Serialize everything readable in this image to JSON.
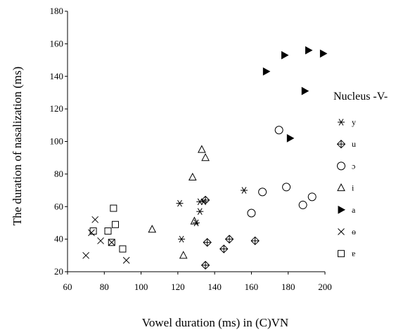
{
  "chart_data": {
    "type": "scatter",
    "title": "",
    "xlabel": "Vowel duration (ms) in (C)VN",
    "ylabel": "The duration of nasalization (ms)",
    "xlim": [
      60,
      200
    ],
    "ylim": [
      20,
      180
    ],
    "x_ticks": [
      "60",
      "80",
      "100",
      "120",
      "140",
      "160",
      "180",
      "200"
    ],
    "y_ticks": [
      "20",
      "40",
      "60",
      "80",
      "100",
      "120",
      "140",
      "160",
      "180"
    ],
    "grid": false,
    "legend": {
      "title": "Nucleus -V-",
      "placement": "right"
    },
    "series": [
      {
        "name": "y",
        "marker": "asterisk",
        "points": [
          [
            121,
            62
          ],
          [
            122,
            40
          ],
          [
            130,
            50
          ],
          [
            132,
            63
          ],
          [
            132,
            57
          ],
          [
            134,
            63
          ],
          [
            156,
            70
          ]
        ]
      },
      {
        "name": "u",
        "marker": "diamond-cross",
        "points": [
          [
            135,
            64
          ],
          [
            135,
            24
          ],
          [
            136,
            38
          ],
          [
            145,
            34
          ],
          [
            148,
            40
          ],
          [
            162,
            39
          ]
        ]
      },
      {
        "name": "ɔ",
        "marker": "circle",
        "points": [
          [
            160,
            56
          ],
          [
            166,
            69
          ],
          [
            175,
            107
          ],
          [
            179,
            72
          ],
          [
            188,
            61
          ],
          [
            193,
            66
          ]
        ]
      },
      {
        "name": "i",
        "marker": "triangle",
        "points": [
          [
            106,
            46
          ],
          [
            123,
            30
          ],
          [
            128,
            78
          ],
          [
            129,
            51
          ],
          [
            133,
            95
          ],
          [
            135,
            90
          ]
        ]
      },
      {
        "name": "a",
        "marker": "triangle-right",
        "points": [
          [
            168,
            143
          ],
          [
            178,
            153
          ],
          [
            181,
            102
          ],
          [
            189,
            131
          ],
          [
            191,
            156
          ],
          [
            199,
            154
          ]
        ]
      },
      {
        "name": "ɵ",
        "marker": "x",
        "points": [
          [
            70,
            30
          ],
          [
            73,
            44
          ],
          [
            75,
            52
          ],
          [
            78,
            39
          ],
          [
            84,
            38
          ],
          [
            92,
            27
          ]
        ]
      },
      {
        "name": "ɐ",
        "marker": "square",
        "points": [
          [
            74,
            45
          ],
          [
            82,
            45
          ],
          [
            84,
            38
          ],
          [
            85,
            59
          ],
          [
            86,
            49
          ],
          [
            90,
            34
          ]
        ]
      }
    ]
  }
}
